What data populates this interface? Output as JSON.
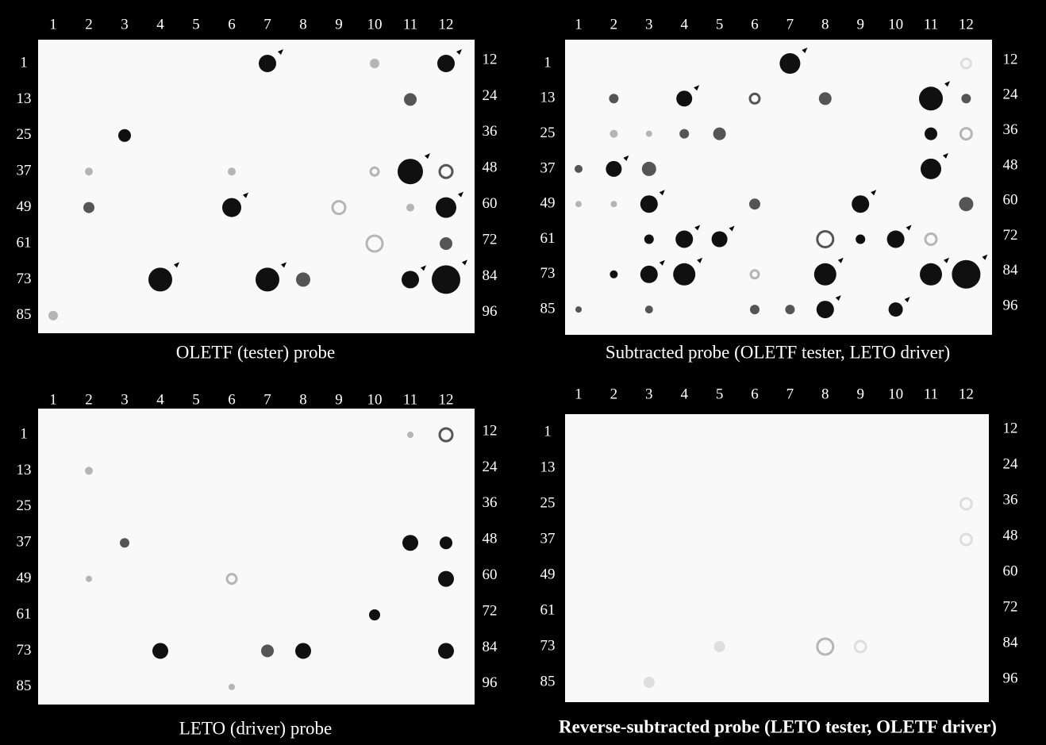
{
  "panels": [
    {
      "caption": "OLETF (tester) probe",
      "column_labels": [
        "1",
        "2",
        "3",
        "4",
        "5",
        "6",
        "7",
        "8",
        "9",
        "10",
        "11",
        "12"
      ],
      "left_labels": [
        "1",
        "13",
        "25",
        "37",
        "49",
        "61",
        "73",
        "85"
      ],
      "right_labels": [
        "12",
        "24",
        "36",
        "48",
        "60",
        "72",
        "84",
        "96"
      ]
    },
    {
      "caption": "Subtracted probe (OLETF tester, LETO driver)",
      "column_labels": [
        "1",
        "2",
        "3",
        "4",
        "5",
        "6",
        "7",
        "8",
        "9",
        "10",
        "11",
        "12"
      ],
      "left_labels": [
        "1",
        "13",
        "25",
        "37",
        "49",
        "61",
        "73",
        "85"
      ],
      "right_labels": [
        "12",
        "24",
        "36",
        "48",
        "60",
        "72",
        "84",
        "96"
      ]
    },
    {
      "caption": "LETO (driver) probe",
      "column_labels": [
        "1",
        "2",
        "3",
        "4",
        "5",
        "6",
        "7",
        "8",
        "9",
        "10",
        "11",
        "12"
      ],
      "left_labels": [
        "1",
        "13",
        "25",
        "37",
        "49",
        "61",
        "73",
        "85"
      ],
      "right_labels": [
        "12",
        "24",
        "36",
        "48",
        "60",
        "72",
        "84",
        "96"
      ]
    },
    {
      "caption": "Reverse-subtracted probe (LETO tester, OLETF driver)",
      "column_labels": [
        "1",
        "2",
        "3",
        "4",
        "5",
        "6",
        "7",
        "8",
        "9",
        "10",
        "11",
        "12"
      ],
      "left_labels": [
        "1",
        "13",
        "25",
        "37",
        "49",
        "61",
        "73",
        "85"
      ],
      "right_labels": [
        "12",
        "24",
        "36",
        "48",
        "60",
        "72",
        "84",
        "96"
      ]
    }
  ]
}
